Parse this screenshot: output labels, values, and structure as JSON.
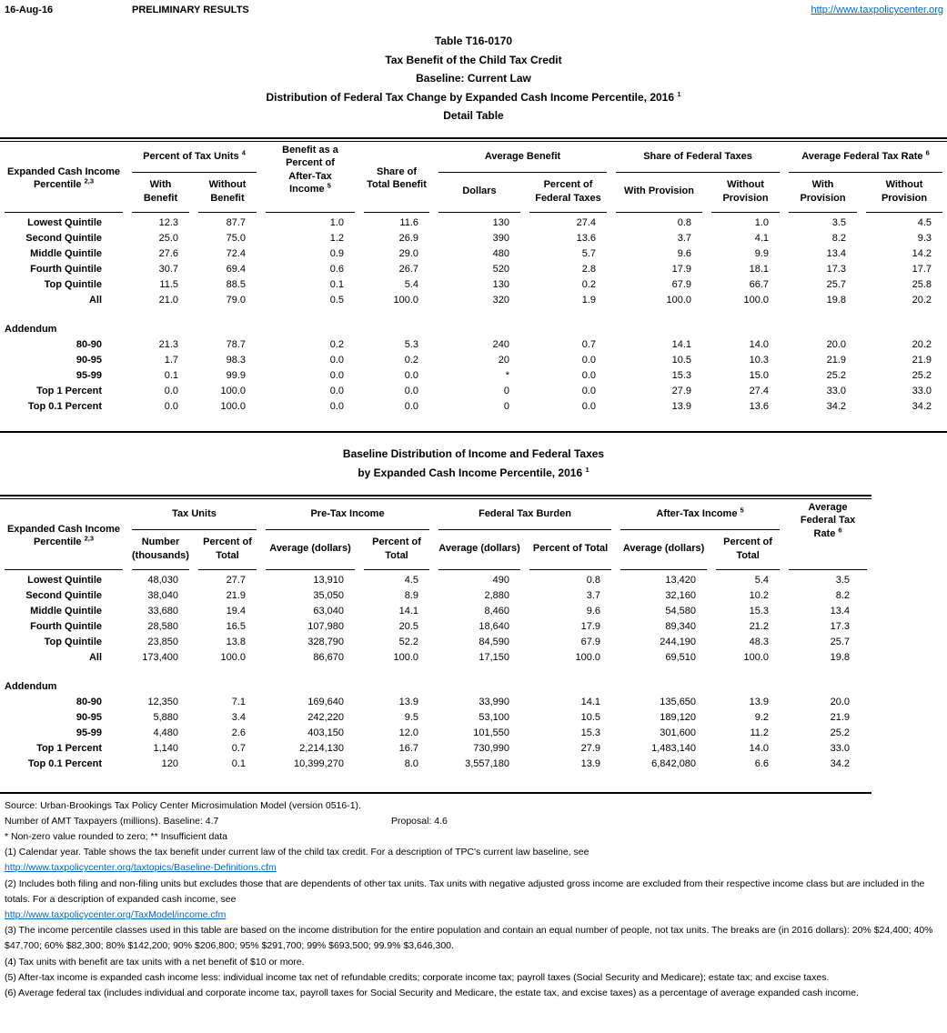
{
  "colors": {
    "link_blue": "#0563C1",
    "text": "#000000"
  },
  "header": {
    "date": "16-Aug-16",
    "status": "PRELIMINARY RESULTS",
    "url": "http://www.taxpolicycenter.org"
  },
  "doc_title": {
    "line1": "Table T16-0170",
    "line2": "Tax Benefit of the Child Tax Credit",
    "line3": "Baseline: Current Law",
    "line4": "Distribution of Federal Tax Change by Expanded Cash Income Percentile, 2016",
    "line4_sup": "1",
    "line5": "Detail Table"
  },
  "table1": {
    "stub_header": {
      "line1": "Expanded Cash Income",
      "line2": "Percentile",
      "sup": "2,3"
    },
    "col_groups": {
      "ptu": {
        "label": "Percent of Tax Units",
        "sup": "4"
      },
      "ati": {
        "line1": "Benefit as a",
        "line2": "Percent of",
        "line3": "After-Tax",
        "line4": "Income",
        "sup": "5"
      },
      "stb": {
        "line1": "Share of",
        "line2": "Total Benefit"
      },
      "avg_benefit": {
        "label": "Average Benefit"
      },
      "sft": {
        "label": "Share of Federal Taxes"
      },
      "afr": {
        "label": "Average Federal Tax Rate",
        "sup": "6"
      }
    },
    "cols": {
      "with_benefit": "With Benefit",
      "without_benefit": "Without Benefit",
      "dollars": "Dollars",
      "pct_fed_taxes": "Percent of Federal Taxes",
      "with_prov_share": "With Provision",
      "without_prov_share": "Without Provision",
      "with_prov_rate": "With Provision",
      "without_prov_rate": "Without Provision"
    },
    "rows": [
      {
        "label": "Lowest Quintile",
        "values": [
          "12.3",
          "87.7",
          "1.0",
          "11.6",
          "130",
          "27.4",
          "0.8",
          "1.0",
          "3.5",
          "4.5"
        ]
      },
      {
        "label": "Second Quintile",
        "values": [
          "25.0",
          "75.0",
          "1.2",
          "26.9",
          "390",
          "13.6",
          "3.7",
          "4.1",
          "8.2",
          "9.3"
        ]
      },
      {
        "label": "Middle Quintile",
        "values": [
          "27.6",
          "72.4",
          "0.9",
          "29.0",
          "480",
          "5.7",
          "9.6",
          "9.9",
          "13.4",
          "14.2"
        ]
      },
      {
        "label": "Fourth Quintile",
        "values": [
          "30.7",
          "69.4",
          "0.6",
          "26.7",
          "520",
          "2.8",
          "17.9",
          "18.1",
          "17.3",
          "17.7"
        ]
      },
      {
        "label": "Top Quintile",
        "values": [
          "11.5",
          "88.5",
          "0.1",
          "5.4",
          "130",
          "0.2",
          "67.9",
          "66.7",
          "25.7",
          "25.8"
        ]
      },
      {
        "label": "All",
        "values": [
          "21.0",
          "79.0",
          "0.5",
          "100.0",
          "320",
          "1.9",
          "100.0",
          "100.0",
          "19.8",
          "20.2"
        ]
      }
    ],
    "addendum_label": "Addendum",
    "addendum_rows": [
      {
        "label": "80-90",
        "values": [
          "21.3",
          "78.7",
          "0.2",
          "5.3",
          "240",
          "0.7",
          "14.1",
          "14.0",
          "20.0",
          "20.2"
        ]
      },
      {
        "label": "90-95",
        "values": [
          "1.7",
          "98.3",
          "0.0",
          "0.2",
          "20",
          "0.0",
          "10.5",
          "10.3",
          "21.9",
          "21.9"
        ]
      },
      {
        "label": "95-99",
        "values": [
          "0.1",
          "99.9",
          "0.0",
          "0.0",
          "*",
          "0.0",
          "15.3",
          "15.0",
          "25.2",
          "25.2"
        ]
      },
      {
        "label": "Top 1 Percent",
        "values": [
          "0.0",
          "100.0",
          "0.0",
          "0.0",
          "0",
          "0.0",
          "27.9",
          "27.4",
          "33.0",
          "33.0"
        ]
      },
      {
        "label": "Top 0.1 Percent",
        "values": [
          "0.0",
          "100.0",
          "0.0",
          "0.0",
          "0",
          "0.0",
          "13.9",
          "13.6",
          "34.2",
          "34.2"
        ]
      }
    ]
  },
  "table2": {
    "title_line1": "Baseline Distribution of Income and Federal Taxes",
    "title_line2": "by Expanded Cash Income Percentile, 2016",
    "title_sup": "1",
    "stub_header": {
      "line1": "Expanded Cash Income",
      "line2": "Percentile",
      "sup": "2,3"
    },
    "col_groups": {
      "tax_units": {
        "label": "Tax Units"
      },
      "pre_tax": {
        "label": "Pre-Tax Income"
      },
      "ftb": {
        "label": "Federal Tax Burden"
      },
      "ati": {
        "label": "After-Tax Income",
        "sup": "5"
      },
      "afr": {
        "line1": "Average",
        "line2": "Federal Tax",
        "line3": "Rate",
        "sup": "6"
      }
    },
    "cols": {
      "number": "Number (thousands)",
      "pct_total_units": "Percent of Total",
      "avg_pre_tax": "Average (dollars)",
      "pct_pre_tax": "Percent of Total",
      "avg_ftb": "Average (dollars)",
      "pct_ftb": "Percent of Total",
      "avg_ati": "Average (dollars)",
      "pct_ati": "Percent of Total"
    },
    "rows": [
      {
        "label": "Lowest Quintile",
        "values": [
          "48,030",
          "27.7",
          "13,910",
          "4.5",
          "490",
          "0.8",
          "13,420",
          "5.4",
          "3.5"
        ]
      },
      {
        "label": "Second Quintile",
        "values": [
          "38,040",
          "21.9",
          "35,050",
          "8.9",
          "2,880",
          "3.7",
          "32,160",
          "10.2",
          "8.2"
        ]
      },
      {
        "label": "Middle Quintile",
        "values": [
          "33,680",
          "19.4",
          "63,040",
          "14.1",
          "8,460",
          "9.6",
          "54,580",
          "15.3",
          "13.4"
        ]
      },
      {
        "label": "Fourth Quintile",
        "values": [
          "28,580",
          "16.5",
          "107,980",
          "20.5",
          "18,640",
          "17.9",
          "89,340",
          "21.2",
          "17.3"
        ]
      },
      {
        "label": "Top Quintile",
        "values": [
          "23,850",
          "13.8",
          "328,790",
          "52.2",
          "84,590",
          "67.9",
          "244,190",
          "48.3",
          "25.7"
        ]
      },
      {
        "label": "All",
        "values": [
          "173,400",
          "100.0",
          "86,670",
          "100.0",
          "17,150",
          "100.0",
          "69,510",
          "100.0",
          "19.8"
        ]
      }
    ],
    "addendum_label": "Addendum",
    "addendum_rows": [
      {
        "label": "80-90",
        "values": [
          "12,350",
          "7.1",
          "169,640",
          "13.9",
          "33,990",
          "14.1",
          "135,650",
          "13.9",
          "20.0"
        ]
      },
      {
        "label": "90-95",
        "values": [
          "5,880",
          "3.4",
          "242,220",
          "9.5",
          "53,100",
          "10.5",
          "189,120",
          "9.2",
          "21.9"
        ]
      },
      {
        "label": "95-99",
        "values": [
          "4,480",
          "2.6",
          "403,150",
          "12.0",
          "101,550",
          "15.3",
          "301,600",
          "11.2",
          "25.2"
        ]
      },
      {
        "label": "Top 1 Percent",
        "values": [
          "1,140",
          "0.7",
          "2,214,130",
          "16.7",
          "730,990",
          "27.9",
          "1,483,140",
          "14.0",
          "33.0"
        ]
      },
      {
        "label": "Top 0.1 Percent",
        "values": [
          "120",
          "0.1",
          "10,399,270",
          "8.0",
          "3,557,180",
          "13.9",
          "6,842,080",
          "6.6",
          "34.2"
        ]
      }
    ]
  },
  "footnotes": {
    "source": "Source: Urban-Brookings Tax Policy Center Microsimulation Model (version 0516-1).",
    "amt": "Number of AMT Taxpayers (millions).  Baseline: 4.7",
    "amt_proposal": "Proposal: 4.6",
    "legend": "* Non-zero value rounded to zero; ** Insufficient data",
    "fn1": "(1) Calendar year. Table shows the tax benefit under current law of the child tax credit. For a description of TPC's current law baseline, see",
    "link1": "http://www.taxpolicycenter.org/taxtopics/Baseline-Definitions.cfm",
    "fn2": "(2) Includes both filing and non-filing units but excludes those that are dependents of other tax units. Tax units with negative adjusted gross income are excluded from their respective income class but are included in the totals. For a description of expanded cash income, see",
    "link2": "http://www.taxpolicycenter.org/TaxModel/income.cfm",
    "fn3": "(3) The income percentile classes used in this table are based on the income distribution for the entire population and contain an equal number of people, not tax units. The breaks are (in 2016 dollars): 20% $24,400; 40% $47,700; 60% $82,300; 80% $142,200; 90% $206,800; 95% $291,700; 99% $693,500; 99.9% $3,646,300.",
    "fn4": "(4) Tax units with benefit are tax units with a net benefit of $10 or more.",
    "fn5": "(5) After-tax income is expanded cash income less: individual income tax net of refundable credits; corporate income tax; payroll taxes (Social Security and Medicare); estate tax; and excise taxes.",
    "fn6": "(6) Average federal tax (includes individual and corporate income tax, payroll taxes for Social Security and Medicare, the estate tax, and excise taxes) as a percentage of average expanded cash income."
  }
}
